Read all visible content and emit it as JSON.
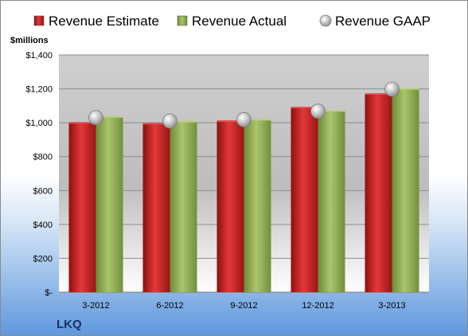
{
  "chart_data": {
    "type": "bar",
    "categories": [
      "3-2012",
      "6-2012",
      "9-2012",
      "12-2012",
      "3-2013"
    ],
    "series": [
      {
        "name": "Revenue Estimate",
        "kind": "bar",
        "color": "#c8201f",
        "values": [
          995,
          990,
          1005,
          1085,
          1165
        ]
      },
      {
        "name": "Revenue Actual",
        "kind": "bar",
        "color": "#8fac55",
        "values": [
          1030,
          1002,
          1013,
          1065,
          1195
        ]
      },
      {
        "name": "Revenue GAAP",
        "kind": "marker",
        "color": "#c9c9c9",
        "values": [
          1030,
          1010,
          1018,
          1068,
          1198
        ]
      }
    ],
    "ylabel": "$millions",
    "ylim": [
      0,
      1400
    ],
    "yticks": [
      0,
      200,
      400,
      600,
      800,
      1000,
      1200,
      1400
    ],
    "ytick_labels": [
      "$-",
      "$200",
      "$400",
      "$600",
      "$800",
      "$1,000",
      "$1,200",
      "$1,400"
    ],
    "grid": true,
    "legend_position": "top"
  },
  "company": "LKQ"
}
